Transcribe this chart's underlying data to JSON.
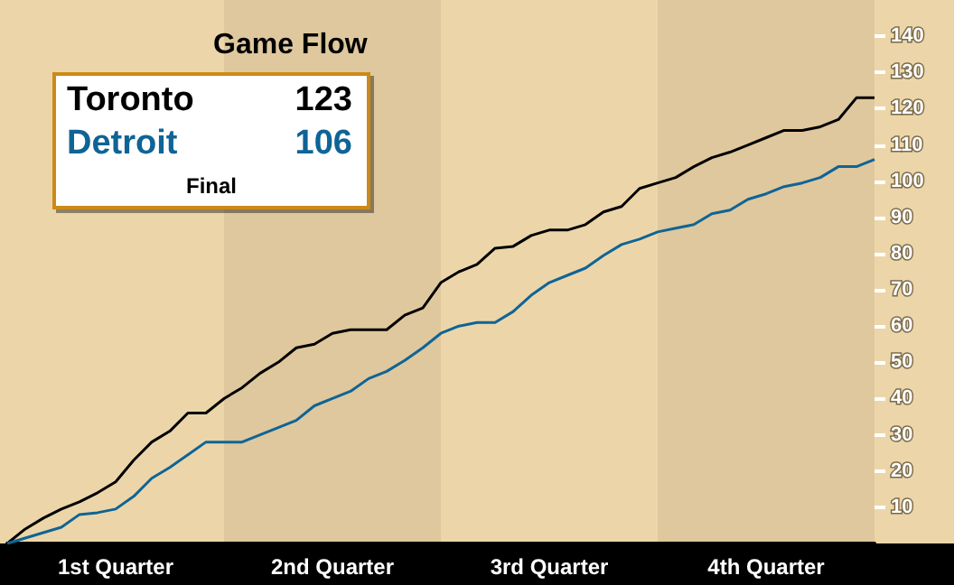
{
  "chart_data": {
    "type": "line",
    "title": "Game Flow",
    "annotations": [
      "123",
      "106",
      "Final"
    ],
    "categories": [
      null,
      null,
      null,
      null,
      null,
      null,
      "1st Quarter",
      null,
      null,
      null,
      null,
      null,
      null,
      null,
      null,
      null,
      null,
      null,
      "2nd Quarter",
      null,
      null,
      null,
      null,
      null,
      null,
      null,
      null,
      null,
      null,
      null,
      "3rd Quarter",
      null,
      null,
      null,
      null,
      null,
      null,
      null,
      null,
      null,
      null,
      null,
      "4th Quarter",
      null,
      null,
      null,
      null,
      null,
      null
    ],
    "ylim": [
      0,
      150
    ],
    "yticks": [
      10,
      20,
      30,
      40,
      50,
      60,
      70,
      80,
      90,
      100,
      110,
      120,
      130,
      140
    ],
    "series": [
      {
        "name": "Toronto",
        "color": "#000000",
        "values": [
          0,
          4,
          7,
          9.5,
          11.5,
          14,
          17,
          23,
          28,
          31,
          36,
          36,
          40,
          43,
          47,
          50,
          54,
          55,
          58,
          59,
          59,
          59,
          63,
          65,
          72,
          75,
          77,
          81.5,
          82,
          85,
          86.5,
          86.5,
          88,
          91.5,
          93,
          98,
          99.5,
          101,
          104,
          106.5,
          108,
          110,
          112,
          114,
          114,
          115,
          117,
          123,
          123
        ]
      },
      {
        "name": "Detroit",
        "color": "#0f6496",
        "values": [
          0,
          1.5,
          3,
          4.5,
          8,
          8.5,
          9.5,
          13,
          18,
          21,
          24.5,
          28,
          28,
          28,
          30,
          32,
          34,
          38,
          40,
          42,
          45.5,
          47.5,
          50.5,
          54,
          58,
          60,
          61,
          61,
          64,
          68.5,
          72,
          74,
          76,
          79.5,
          82.5,
          84,
          86,
          87,
          88,
          91,
          92,
          95,
          96.5,
          98.5,
          99.5,
          101,
          104,
          104,
          106
        ]
      }
    ]
  }
}
